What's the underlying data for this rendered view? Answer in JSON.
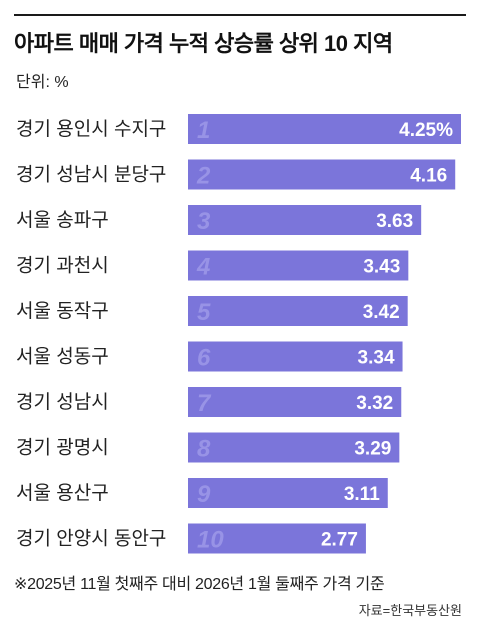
{
  "title": "아파트 매매 가격 누적 상승률 상위 10 지역",
  "unit_label": "단위: %",
  "note": "※2025년 11월 첫째주 대비 2026년 1월 둘째주 가격 기준",
  "source": "자료=한국부동산원",
  "colors": {
    "bar": "#7b75da",
    "rank_text": "#9893e6",
    "value_text": "#ffffff"
  },
  "chart_data": {
    "type": "bar",
    "orientation": "horizontal",
    "title": "아파트 매매 가격 누적 상승률 상위 10 지역",
    "unit": "%",
    "categories": [
      "경기 용인시 수지구",
      "경기 성남시 분당구",
      "서울 송파구",
      "경기 과천시",
      "서울 동작구",
      "서울 성동구",
      "경기 성남시",
      "경기 광명시",
      "서울 용산구",
      "경기 안양시 동안구"
    ],
    "ranks": [
      "1",
      "2",
      "3",
      "4",
      "5",
      "6",
      "7",
      "8",
      "9",
      "10"
    ],
    "values": [
      4.25,
      4.16,
      3.63,
      3.43,
      3.42,
      3.34,
      3.32,
      3.29,
      3.11,
      2.77
    ],
    "value_labels": [
      "4.25%",
      "4.16",
      "3.63",
      "3.43",
      "3.42",
      "3.34",
      "3.32",
      "3.29",
      "3.11",
      "2.77"
    ],
    "xlim": [
      0,
      4.25
    ]
  }
}
